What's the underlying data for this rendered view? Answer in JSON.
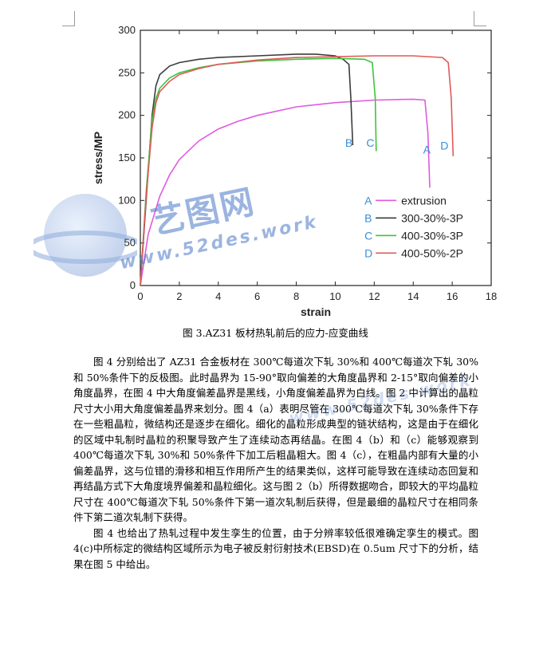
{
  "chart_data": {
    "type": "line",
    "xlabel": "strain",
    "ylabel": "stress/MP",
    "xlim": [
      0,
      18
    ],
    "ylim": [
      0,
      300
    ],
    "xticks": [
      0,
      2,
      4,
      6,
      8,
      10,
      12,
      14,
      16,
      18
    ],
    "yticks": [
      0,
      50,
      100,
      150,
      200,
      250,
      300
    ],
    "legend_position": "bottom-right",
    "series": [
      {
        "name": "extrusion",
        "letter": "A",
        "color": "#e05ae0",
        "x": [
          0,
          0.4,
          1,
          1.5,
          2,
          3,
          4,
          5,
          6,
          8,
          10,
          12,
          14,
          14.6,
          14.75,
          14.85
        ],
        "y": [
          0,
          60,
          105,
          130,
          148,
          170,
          184,
          193,
          200,
          210,
          215,
          218,
          219,
          218,
          180,
          115
        ]
      },
      {
        "name": "300-30%-3P",
        "letter": "B",
        "color": "#3c3c3c",
        "x": [
          0,
          0.3,
          0.6,
          0.8,
          1,
          1.5,
          2,
          3,
          4,
          6,
          8,
          9,
          10,
          10.4,
          10.7,
          10.8,
          10.9
        ],
        "y": [
          0,
          100,
          200,
          235,
          248,
          258,
          262,
          266,
          268,
          270,
          272,
          272,
          270,
          266,
          260,
          220,
          165
        ]
      },
      {
        "name": "400-30%-3P",
        "letter": "C",
        "color": "#3cc43c",
        "x": [
          0,
          0.3,
          0.6,
          0.8,
          1,
          1.5,
          2,
          3,
          4,
          6,
          8,
          10,
          11.5,
          11.9,
          12.05,
          12.1
        ],
        "y": [
          0,
          110,
          195,
          220,
          232,
          244,
          250,
          256,
          260,
          264,
          266,
          267,
          266,
          262,
          220,
          158
        ]
      },
      {
        "name": "400-50%-2P",
        "letter": "D",
        "color": "#e05a5a",
        "x": [
          0,
          0.3,
          0.6,
          0.8,
          1,
          1.5,
          2,
          3,
          4,
          6,
          8,
          10,
          12,
          14,
          15.5,
          15.8,
          15.95,
          16.05
        ],
        "y": [
          0,
          105,
          185,
          215,
          228,
          240,
          248,
          255,
          260,
          265,
          268,
          269,
          270,
          270,
          268,
          262,
          220,
          152
        ]
      }
    ]
  },
  "caption": "图 3.AZ31 板材热轧前后的应力-应变曲线",
  "paragraphs": [
    "图 4 分别给出了 AZ31 合金板材在 300℃每道次下轧 30%和 400℃每道次下轧 30%和 50%条件下的反极图。此时晶界为 15-90°取向偏差的大角度晶界和 2-15°取向偏差的小角度晶界，在图 4 中大角度偏差晶界是黑线，小角度偏差晶界为白线。图 2 中计算出的晶粒尺寸大小用大角度偏差晶界来划分。图 4（a）表明尽管在 300℃每道次下轧 30%条件下存在一些粗晶粒，微结构还是逐步在细化。细化的晶粒形成典型的链状结构，这是由于在细化的区域中轧制时晶粒的积聚导致产生了连续动态再结晶。在图 4（b）和（c）能够观察到 400℃每道次下轧 30%和 50%条件下加工后粗晶粗大。图 4（c），在粗晶内部有大量的小偏差晶界，这与位错的滑移和相互作用所产生的结果类似，这样可能导致在连续动态回复和再结晶方式下大角度境界偏差和晶粒细化。这与图 2（b）所得数据吻合，即较大的平均晶粒尺寸在 400℃每道次下轧 50%条件下第一道次轧制后获得，但是最细的晶粒尺寸在相同条件下第二道次轧制下获得。",
    "图 4 也给出了热轧过程中发生孪生的位置，由于分辨率较低很难确定孪生的模式。图 4(c)中所标定的微结构区域所示为电子被反射衍射技术(EBSD)在 0.5um 尺寸下的分析，结果在图 5 中给出。"
  ],
  "watermark": {
    "title": "艺图网",
    "url": "www.52des.work"
  }
}
